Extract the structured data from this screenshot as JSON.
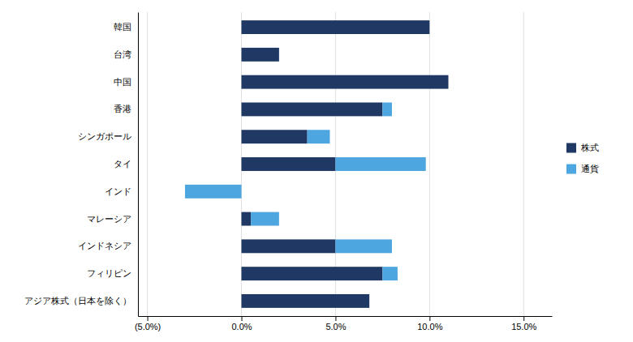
{
  "chart_data": {
    "type": "bar",
    "orientation": "horizontal",
    "stacked": true,
    "categories": [
      "韓国",
      "台湾",
      "中国",
      "香港",
      "シンガポール",
      "タイ",
      "インド",
      "マレーシア",
      "インドネシア",
      "フィリピン",
      "アジア株式（日本を除く）"
    ],
    "series": [
      {
        "name": "株式",
        "color": "#1f3864",
        "values": [
          10.0,
          2.0,
          11.0,
          7.5,
          3.5,
          5.0,
          0.0,
          0.5,
          5.0,
          7.5,
          6.8
        ]
      },
      {
        "name": "通貨",
        "color": "#4da6e0",
        "values": [
          0.0,
          0.0,
          0.0,
          0.5,
          1.2,
          4.8,
          -3.0,
          1.5,
          3.0,
          0.8,
          0.0
        ]
      }
    ],
    "xlim": [
      -5.5,
      16.5
    ],
    "xticks": [
      {
        "value": -5.0,
        "label": "(5.0%)"
      },
      {
        "value": 0.0,
        "label": "0.0%"
      },
      {
        "value": 5.0,
        "label": "5.0%"
      },
      {
        "value": 10.0,
        "label": "10.0%"
      },
      {
        "value": 15.0,
        "label": "15.0%"
      }
    ],
    "grid": true,
    "legend": "right"
  }
}
